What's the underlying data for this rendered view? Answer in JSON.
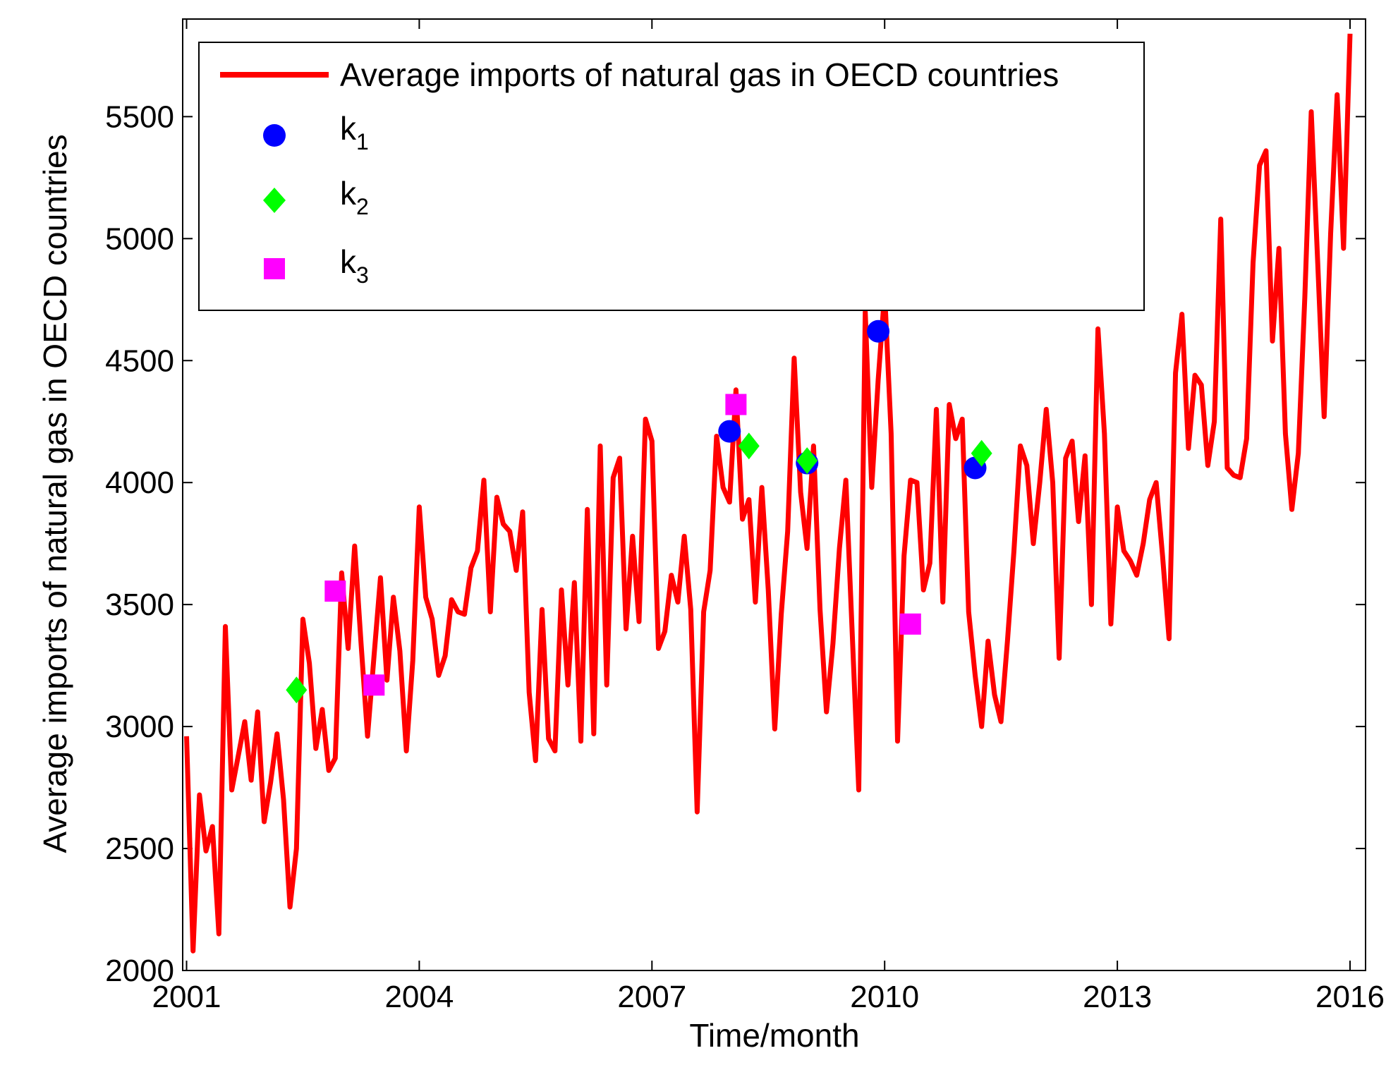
{
  "chart_data": {
    "type": "line",
    "xlabel": "Time/month",
    "ylabel": "Average imports of natural gas in OECD countries",
    "xlim": [
      2000.95,
      2016.2
    ],
    "ylim": [
      2000,
      5900
    ],
    "x_ticks": [
      2001,
      2004,
      2007,
      2010,
      2013,
      2016
    ],
    "x_tick_labels": [
      "2001",
      "2004",
      "2007",
      "2010",
      "2013",
      "2016"
    ],
    "y_ticks": [
      2000,
      2500,
      3000,
      3500,
      4000,
      4500,
      5000,
      5500
    ],
    "y_tick_labels": [
      "2000",
      "2500",
      "3000",
      "3500",
      "4000",
      "4500",
      "5000",
      "5500"
    ],
    "legend_location": "top-left",
    "series": [
      {
        "name": "Average imports of natural gas in OECD countries",
        "style": "line",
        "color": "#ff0000",
        "x_start": 2001.0,
        "x_step": 0.083333,
        "values": [
          2960,
          2080,
          2720,
          2490,
          2590,
          2150,
          3410,
          2740,
          2880,
          3020,
          2780,
          3060,
          2610,
          2770,
          2970,
          2700,
          2260,
          2500,
          3440,
          3260,
          2910,
          3070,
          2820,
          2870,
          3630,
          3320,
          3740,
          3340,
          2960,
          3290,
          3610,
          3190,
          3530,
          3310,
          2900,
          3270,
          3900,
          3530,
          3440,
          3210,
          3290,
          3520,
          3470,
          3460,
          3650,
          3720,
          4010,
          3470,
          3940,
          3830,
          3800,
          3640,
          3880,
          3140,
          2860,
          3480,
          2950,
          2900,
          3560,
          3170,
          3590,
          2940,
          3890,
          2970,
          4150,
          3170,
          4020,
          4100,
          3400,
          3780,
          3430,
          4260,
          4170,
          3320,
          3390,
          3620,
          3510,
          3780,
          3480,
          2650,
          3470,
          3640,
          4190,
          3980,
          3920,
          4380,
          3850,
          3930,
          3510,
          3980,
          3560,
          2990,
          3460,
          3800,
          4510,
          3960,
          3730,
          4150,
          3480,
          3060,
          3340,
          3730,
          4010,
          3370,
          2740,
          4700,
          3980,
          4420,
          4780,
          4200,
          2940,
          3700,
          4010,
          4000,
          3560,
          3670,
          4300,
          3510,
          4320,
          4180,
          4260,
          3470,
          3210,
          3000,
          3350,
          3130,
          3020,
          3350,
          3720,
          4150,
          4070,
          3750,
          4000,
          4300,
          4000,
          3280,
          4100,
          4170,
          3840,
          4110,
          3500,
          4630,
          4200,
          3420,
          3900,
          3720,
          3680,
          3620,
          3750,
          3930,
          4000,
          3700,
          3360,
          4450,
          4690,
          4140,
          4440,
          4400,
          4070,
          4250,
          5080,
          4060,
          4030,
          4020,
          4180,
          4900,
          5300,
          5360,
          4580,
          4960,
          4200,
          3890,
          4120,
          4760,
          5520,
          4900,
          4270,
          5020,
          5590,
          4960,
          5840
        ]
      },
      {
        "name": "k",
        "subscript": "1",
        "style": "marker",
        "marker": "circle",
        "color": "#0000ff",
        "points": [
          {
            "x": 2008.0,
            "y": 4210
          },
          {
            "x": 2009.0,
            "y": 4080
          },
          {
            "x": 2009.917,
            "y": 4620
          },
          {
            "x": 2011.167,
            "y": 4060
          }
        ]
      },
      {
        "name": "k",
        "subscript": "2",
        "style": "marker",
        "marker": "diamond",
        "color": "#00ff00",
        "points": [
          {
            "x": 2002.417,
            "y": 3150
          },
          {
            "x": 2008.25,
            "y": 4150
          },
          {
            "x": 2009.0,
            "y": 4090
          },
          {
            "x": 2011.25,
            "y": 4120
          }
        ]
      },
      {
        "name": "k",
        "subscript": "3",
        "style": "marker",
        "marker": "square",
        "color": "#ff00ff",
        "points": [
          {
            "x": 2002.917,
            "y": 3555
          },
          {
            "x": 2003.417,
            "y": 3170
          },
          {
            "x": 2008.083,
            "y": 4320
          },
          {
            "x": 2010.333,
            "y": 3420
          }
        ]
      }
    ]
  }
}
